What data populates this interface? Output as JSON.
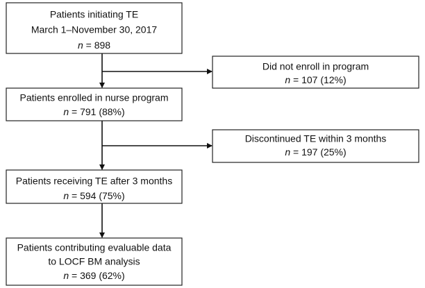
{
  "nodes": [
    {
      "lines": [
        "Patients initiating TE",
        "March 1–November 30, 2017"
      ],
      "count": {
        "symbol": "n",
        "text": " = 898"
      }
    },
    {
      "lines": [
        "Did not enroll in program"
      ],
      "count": {
        "symbol": "n",
        "text": " = 107 (12%)"
      }
    },
    {
      "lines": [
        "Patients enrolled in nurse program"
      ],
      "count": {
        "symbol": "n",
        "text": " = 791 (88%)"
      }
    },
    {
      "lines": [
        "Discontinued TE within 3 months"
      ],
      "count": {
        "symbol": "n",
        "text": " = 197 (25%)"
      }
    },
    {
      "lines": [
        "Patients receiving TE after 3 months"
      ],
      "count": {
        "symbol": "n",
        "text": " = 594 (75%)"
      }
    },
    {
      "lines": [
        "Patients contributing evaluable data",
        "to LOCF BM analysis"
      ],
      "count": {
        "symbol": "n",
        "text": " = 369 (62%)"
      }
    }
  ]
}
